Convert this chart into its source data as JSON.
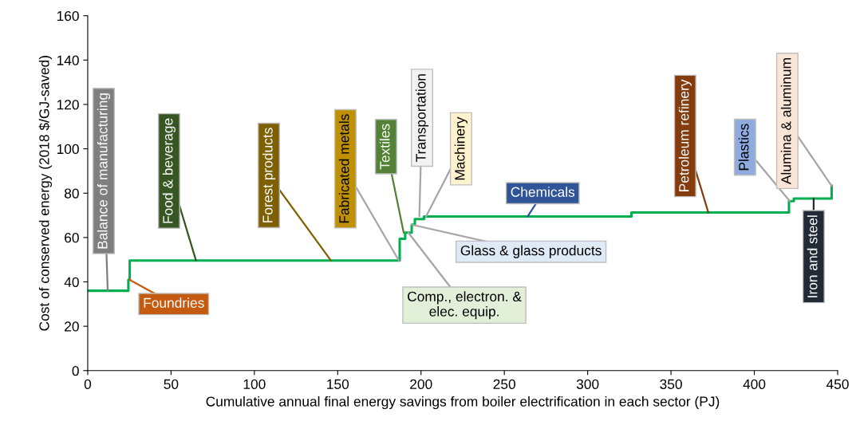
{
  "chart_data": {
    "type": "step",
    "xlabel": "Cumulative annual final energy savings from boiler electrification in each sector (PJ)",
    "ylabel": "Cost of conserved energy (2018 $/GJ-saved)",
    "x": [
      0,
      24.4,
      25.2,
      187.2,
      190.5,
      194.4,
      196.3,
      201.8,
      326.3,
      420.8,
      423.7,
      446.4
    ],
    "series": [
      {
        "color": "#00b050",
        "values": [
          36,
          41,
          49.6,
          59.4,
          62.2,
          65.8,
          68.3,
          69.5,
          71.3,
          76.4,
          77.6,
          83.3
        ]
      }
    ],
    "xlim": [
      0,
      450
    ],
    "xticks": [
      0,
      50,
      100,
      150,
      200,
      250,
      300,
      350,
      400,
      450
    ],
    "ylim": [
      0,
      160
    ],
    "yticks": [
      0,
      20,
      40,
      60,
      80,
      100,
      120,
      140,
      160
    ],
    "grid": false,
    "legend": false,
    "annotations": [
      {
        "text": "Balance of manufacturing",
        "x": 12,
        "y": 36
      },
      {
        "text": "Foundries",
        "x": 25,
        "y": 41
      },
      {
        "text": "Food & beverage",
        "x": 65,
        "y": 49.6
      },
      {
        "text": "Forest products",
        "x": 146,
        "y": 49.6
      },
      {
        "text": "Fabricated metals",
        "x": 186.7,
        "y": 49.6
      },
      {
        "text": "Textiles",
        "x": 189.6,
        "y": 62.2
      },
      {
        "text": "Transportation",
        "x": 199,
        "y": 69.5
      },
      {
        "text": "Machinery",
        "x": 203,
        "y": 69.5
      },
      {
        "text": "Chemicals",
        "x": 264,
        "y": 69.5
      },
      {
        "text": "Glass & glass products",
        "x": 194.4,
        "y": 65.8
      },
      {
        "text": "Comp., electron. &\nelec. equip.",
        "x": 192.4,
        "y": 62.2
      },
      {
        "text": "Petroleum refinery",
        "x": 372.4,
        "y": 71.3
      },
      {
        "text": "Plastics",
        "x": 421.3,
        "y": 76.4
      },
      {
        "text": "Alumina & aluminum",
        "x": 446.4,
        "y": 83.3
      },
      {
        "text": "Iron and steel",
        "x": 435.6,
        "y": 77.6
      }
    ]
  }
}
